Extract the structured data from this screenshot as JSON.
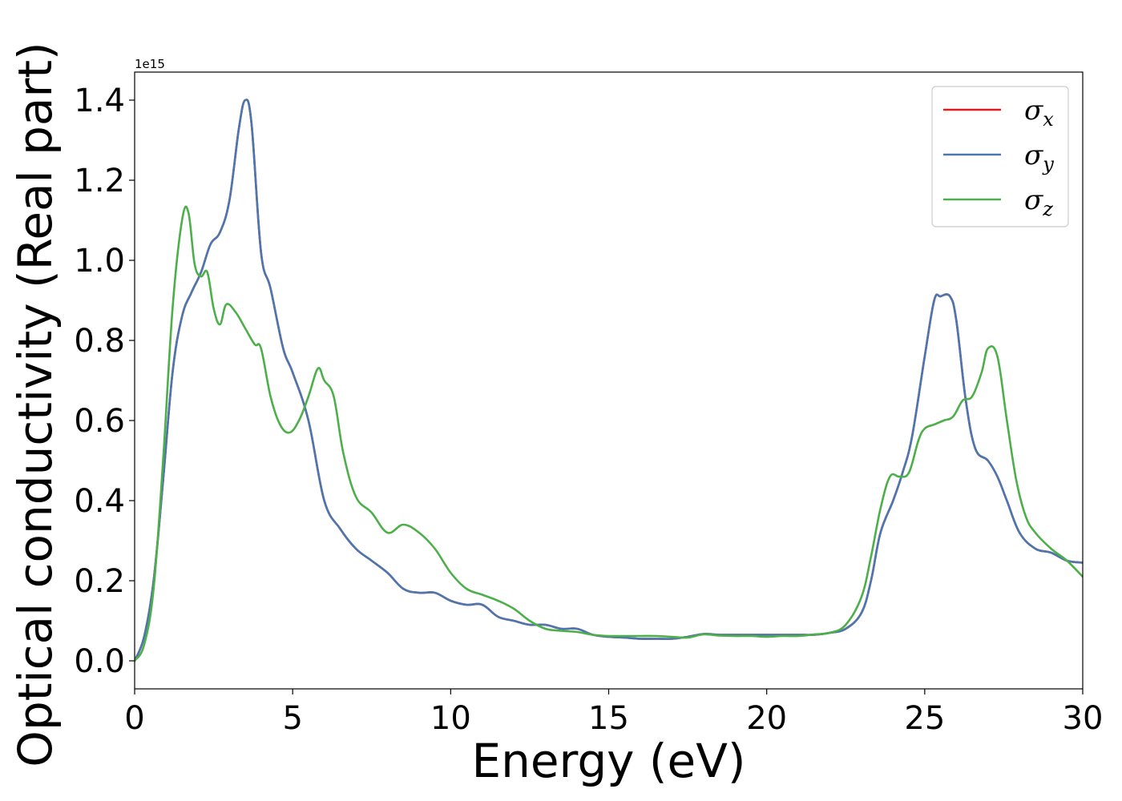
{
  "chart_data": {
    "type": "line",
    "title": "",
    "xlabel": "Energy (eV)",
    "ylabel": "Optical conductivity (Real part)",
    "y_offset_label": "1e15",
    "xlim": [
      0,
      30
    ],
    "ylim": [
      -0.07,
      1.47
    ],
    "x_ticks": [
      0,
      5,
      10,
      15,
      20,
      25,
      30
    ],
    "x_tick_labels": [
      "0",
      "5",
      "10",
      "15",
      "20",
      "25",
      "30"
    ],
    "y_ticks": [
      0.0,
      0.2,
      0.4,
      0.6,
      0.8,
      1.0,
      1.2,
      1.4
    ],
    "y_tick_labels": [
      "0.0",
      "0.2",
      "0.4",
      "0.6",
      "0.8",
      "1.0",
      "1.2",
      "1.4"
    ],
    "grid": false,
    "legend_position": "top-right",
    "series": [
      {
        "name": "σ_x",
        "legend_symbol": "σ",
        "legend_subscript": "x",
        "color": "#e41a1c",
        "x": [
          0,
          0.3,
          0.6,
          0.9,
          1.2,
          1.5,
          1.8,
          2.1,
          2.4,
          2.7,
          3.0,
          3.3,
          3.5,
          3.7,
          4.0,
          4.3,
          4.7,
          5.0,
          5.5,
          6.0,
          6.5,
          7.0,
          7.5,
          8.0,
          8.5,
          9.0,
          9.5,
          10.0,
          10.5,
          11.0,
          11.5,
          12.0,
          12.5,
          13.0,
          13.5,
          14.0,
          14.5,
          15.0,
          15.5,
          16.0,
          16.5,
          17.0,
          17.5,
          18.0,
          18.5,
          19.0,
          19.5,
          20.0,
          20.5,
          21.0,
          21.5,
          22.0,
          22.5,
          23.0,
          23.3,
          23.6,
          24.0,
          24.3,
          24.6,
          25.0,
          25.3,
          25.5,
          25.8,
          26.0,
          26.3,
          26.6,
          27.0,
          27.3,
          27.6,
          28.0,
          28.5,
          29.0,
          29.5,
          30.0
        ],
        "y": [
          0.0,
          0.06,
          0.2,
          0.45,
          0.72,
          0.86,
          0.92,
          0.97,
          1.04,
          1.07,
          1.15,
          1.33,
          1.4,
          1.34,
          1.02,
          0.93,
          0.78,
          0.72,
          0.6,
          0.4,
          0.33,
          0.28,
          0.25,
          0.22,
          0.18,
          0.17,
          0.17,
          0.15,
          0.14,
          0.14,
          0.11,
          0.1,
          0.09,
          0.09,
          0.08,
          0.08,
          0.065,
          0.06,
          0.058,
          0.055,
          0.055,
          0.055,
          0.06,
          0.067,
          0.065,
          0.065,
          0.065,
          0.065,
          0.065,
          0.065,
          0.065,
          0.07,
          0.08,
          0.12,
          0.2,
          0.32,
          0.4,
          0.47,
          0.56,
          0.76,
          0.9,
          0.91,
          0.91,
          0.85,
          0.65,
          0.53,
          0.5,
          0.46,
          0.4,
          0.32,
          0.28,
          0.27,
          0.25,
          0.245
        ]
      },
      {
        "name": "σ_y",
        "legend_symbol": "σ",
        "legend_subscript": "y",
        "color": "#4a77b0",
        "x": [
          0,
          0.3,
          0.6,
          0.9,
          1.2,
          1.5,
          1.8,
          2.1,
          2.4,
          2.7,
          3.0,
          3.3,
          3.5,
          3.7,
          4.0,
          4.3,
          4.7,
          5.0,
          5.5,
          6.0,
          6.5,
          7.0,
          7.5,
          8.0,
          8.5,
          9.0,
          9.5,
          10.0,
          10.5,
          11.0,
          11.5,
          12.0,
          12.5,
          13.0,
          13.5,
          14.0,
          14.5,
          15.0,
          15.5,
          16.0,
          16.5,
          17.0,
          17.5,
          18.0,
          18.5,
          19.0,
          19.5,
          20.0,
          20.5,
          21.0,
          21.5,
          22.0,
          22.5,
          23.0,
          23.3,
          23.6,
          24.0,
          24.3,
          24.6,
          25.0,
          25.3,
          25.5,
          25.8,
          26.0,
          26.3,
          26.6,
          27.0,
          27.3,
          27.6,
          28.0,
          28.5,
          29.0,
          29.5,
          30.0
        ],
        "y": [
          0.0,
          0.06,
          0.2,
          0.45,
          0.72,
          0.86,
          0.92,
          0.97,
          1.04,
          1.07,
          1.15,
          1.33,
          1.4,
          1.34,
          1.02,
          0.93,
          0.78,
          0.72,
          0.6,
          0.4,
          0.33,
          0.28,
          0.25,
          0.22,
          0.18,
          0.17,
          0.17,
          0.15,
          0.14,
          0.14,
          0.11,
          0.1,
          0.09,
          0.09,
          0.08,
          0.08,
          0.065,
          0.06,
          0.058,
          0.055,
          0.055,
          0.055,
          0.06,
          0.067,
          0.065,
          0.065,
          0.065,
          0.065,
          0.065,
          0.065,
          0.065,
          0.07,
          0.08,
          0.12,
          0.2,
          0.32,
          0.4,
          0.47,
          0.56,
          0.76,
          0.9,
          0.91,
          0.91,
          0.85,
          0.65,
          0.53,
          0.5,
          0.46,
          0.4,
          0.32,
          0.28,
          0.27,
          0.25,
          0.245
        ]
      },
      {
        "name": "σ_z",
        "legend_symbol": "σ",
        "legend_subscript": "z",
        "color": "#4daf4a",
        "x": [
          0,
          0.3,
          0.6,
          0.9,
          1.2,
          1.5,
          1.7,
          1.9,
          2.1,
          2.3,
          2.5,
          2.7,
          2.9,
          3.2,
          3.5,
          3.8,
          4.0,
          4.3,
          4.6,
          4.9,
          5.2,
          5.5,
          5.8,
          6.0,
          6.3,
          6.6,
          7.0,
          7.5,
          8.0,
          8.5,
          9.0,
          9.5,
          10.0,
          10.5,
          11.0,
          11.5,
          12.0,
          12.5,
          13.0,
          13.5,
          14.0,
          14.5,
          15.0,
          15.5,
          16.0,
          16.5,
          17.0,
          17.5,
          18.0,
          18.5,
          19.0,
          19.5,
          20.0,
          20.5,
          21.0,
          21.5,
          22.0,
          22.5,
          23.0,
          23.3,
          23.6,
          23.9,
          24.2,
          24.5,
          24.8,
          25.0,
          25.3,
          25.6,
          25.9,
          26.2,
          26.5,
          26.8,
          27.0,
          27.3,
          27.6,
          27.9,
          28.2,
          28.5,
          29.0,
          29.5,
          30.0
        ],
        "y": [
          0.0,
          0.04,
          0.18,
          0.5,
          0.88,
          1.1,
          1.12,
          0.99,
          0.96,
          0.97,
          0.88,
          0.84,
          0.89,
          0.87,
          0.83,
          0.79,
          0.78,
          0.66,
          0.59,
          0.57,
          0.6,
          0.66,
          0.73,
          0.7,
          0.66,
          0.52,
          0.41,
          0.37,
          0.32,
          0.34,
          0.32,
          0.28,
          0.22,
          0.18,
          0.165,
          0.15,
          0.13,
          0.1,
          0.08,
          0.075,
          0.072,
          0.065,
          0.062,
          0.062,
          0.062,
          0.062,
          0.06,
          0.058,
          0.066,
          0.063,
          0.062,
          0.062,
          0.06,
          0.062,
          0.062,
          0.066,
          0.07,
          0.09,
          0.16,
          0.26,
          0.38,
          0.46,
          0.46,
          0.47,
          0.55,
          0.58,
          0.59,
          0.6,
          0.61,
          0.65,
          0.66,
          0.72,
          0.78,
          0.76,
          0.6,
          0.45,
          0.36,
          0.32,
          0.28,
          0.25,
          0.21
        ]
      }
    ]
  }
}
